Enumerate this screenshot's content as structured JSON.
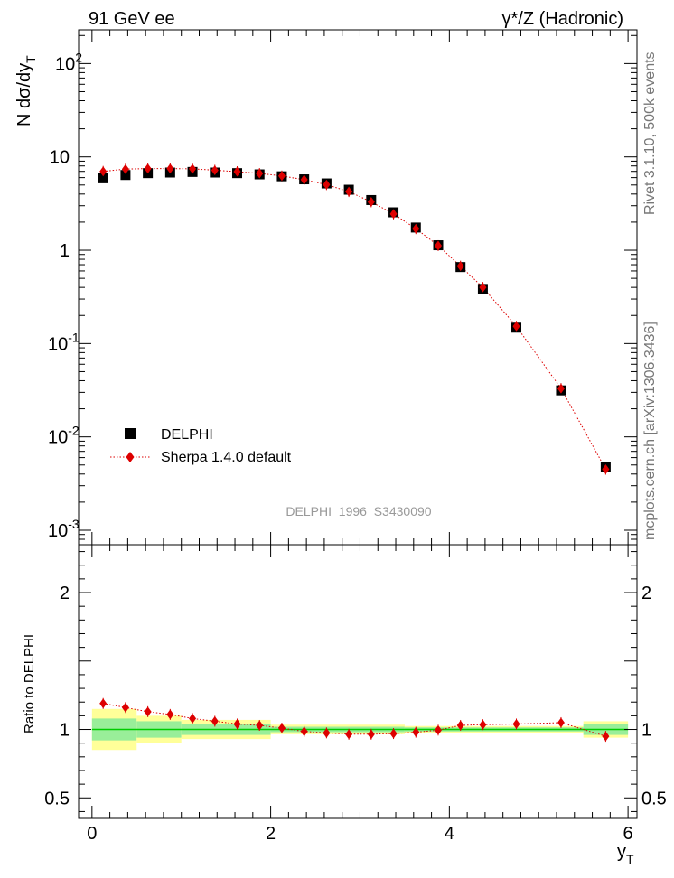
{
  "header": {
    "left": "91 GeV ee",
    "right": "γ*/Z (Hadronic)"
  },
  "side_labels": {
    "top": "Rivet 3.1.10,  500k events",
    "bottom": "mcplots.cern.ch [arXiv:1306.3436]"
  },
  "watermark": "DELPHI_1996_S3430090",
  "legend": {
    "data_label": "DELPHI",
    "mc_label": "Sherpa 1.4.0 default"
  },
  "colors": {
    "data": "#000000",
    "mc": "#dd0000",
    "band_inner": "#99ee99",
    "band_outer": "#ffff99",
    "ref_line": "#00cc00"
  },
  "chart_data": [
    {
      "type": "scatter",
      "ylabel": "N dσ/dy_T",
      "yscale": "log",
      "ylim": [
        0.0007,
        230
      ],
      "xlim": [
        -0.15,
        6.1
      ],
      "ytick_labels": [
        "10^-3",
        "10^-2",
        "10^-1",
        "1",
        "10",
        "10^2"
      ],
      "series": [
        {
          "name": "DELPHI",
          "x": [
            0.125,
            0.375,
            0.625,
            0.875,
            1.125,
            1.375,
            1.625,
            1.875,
            2.125,
            2.375,
            2.625,
            2.875,
            3.125,
            3.375,
            3.625,
            3.875,
            4.125,
            4.375,
            4.75,
            5.25,
            5.75
          ],
          "y": [
            5.9,
            6.4,
            6.7,
            6.8,
            6.9,
            6.8,
            6.7,
            6.5,
            6.2,
            5.75,
            5.2,
            4.45,
            3.45,
            2.55,
            1.75,
            1.13,
            0.66,
            0.385,
            0.148,
            0.0315,
            0.0048
          ]
        },
        {
          "name": "Sherpa 1.4.0 default",
          "x": [
            0.125,
            0.375,
            0.625,
            0.875,
            1.125,
            1.375,
            1.625,
            1.875,
            2.125,
            2.375,
            2.625,
            2.875,
            3.125,
            3.375,
            3.625,
            3.875,
            4.125,
            4.375,
            4.75,
            5.25,
            5.75
          ],
          "y": [
            7.0,
            7.4,
            7.5,
            7.5,
            7.45,
            7.2,
            6.95,
            6.65,
            6.25,
            5.7,
            5.05,
            4.25,
            3.3,
            2.45,
            1.7,
            1.12,
            0.675,
            0.4,
            0.153,
            0.033,
            0.0045
          ]
        }
      ]
    },
    {
      "type": "scatter",
      "ylabel": "Ratio to DELPHI",
      "xlabel": "y_T",
      "ylim": [
        0.35,
        2.35
      ],
      "xlim": [
        -0.15,
        6.1
      ],
      "ytick_labels": [
        "0.5",
        "1",
        "2"
      ],
      "xtick_labels": [
        "0",
        "2",
        "4",
        "6"
      ],
      "band_edges": [
        0.0,
        0.5,
        1.0,
        2.0,
        3.5,
        5.5,
        6.0
      ],
      "band_inner": [
        0.08,
        0.06,
        0.04,
        0.02,
        0.015,
        0.04
      ],
      "band_outer": [
        0.15,
        0.1,
        0.07,
        0.035,
        0.025,
        0.06
      ],
      "series": [
        {
          "name": "Sherpa 1.4.0 default",
          "x": [
            0.125,
            0.375,
            0.625,
            0.875,
            1.125,
            1.375,
            1.625,
            1.875,
            2.125,
            2.375,
            2.625,
            2.875,
            3.125,
            3.375,
            3.625,
            3.875,
            4.125,
            4.375,
            4.75,
            5.25,
            5.75
          ],
          "y": [
            1.19,
            1.16,
            1.13,
            1.11,
            1.08,
            1.06,
            1.04,
            1.03,
            1.01,
            0.985,
            0.975,
            0.965,
            0.965,
            0.97,
            0.98,
            0.995,
            1.03,
            1.035,
            1.04,
            1.05,
            0.95
          ]
        }
      ]
    }
  ]
}
